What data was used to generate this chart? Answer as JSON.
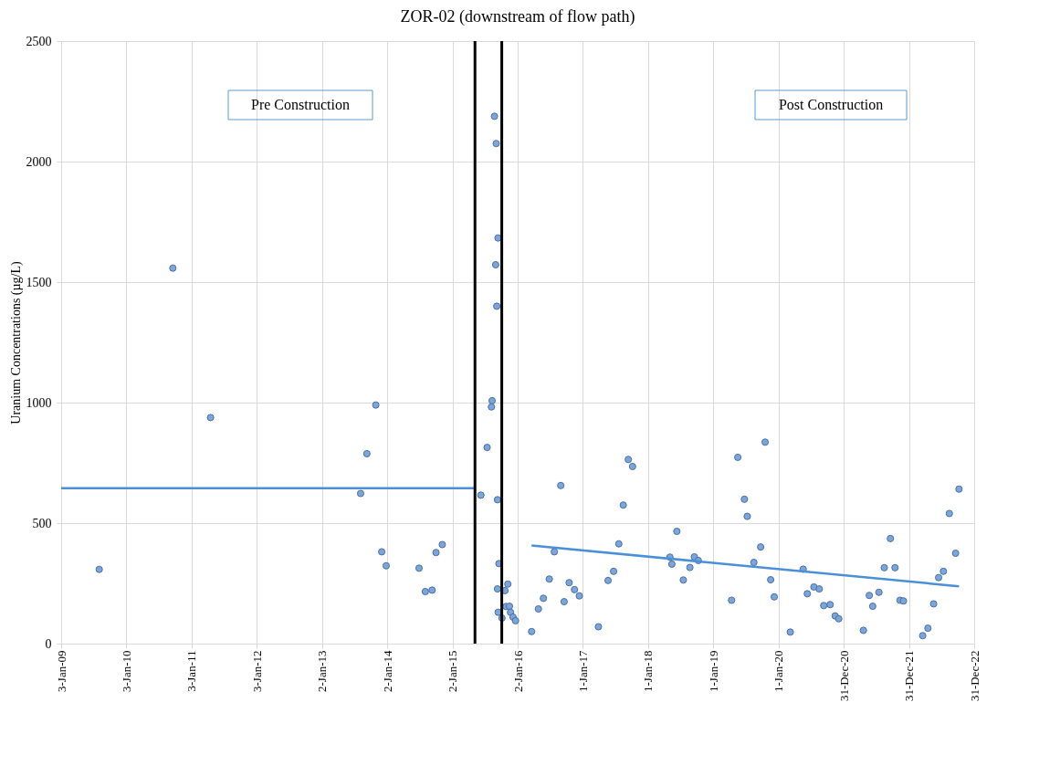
{
  "chart_data": {
    "type": "scatter",
    "title": "ZOR-02 (downstream of flow path)",
    "ylabel": "Uranium Concentrations (µg/L)",
    "xlim": [
      "2009-01-03",
      "2022-12-31"
    ],
    "ylim": [
      0,
      2500
    ],
    "yticks": [
      0,
      500,
      1000,
      1500,
      2000,
      2500
    ],
    "xticks": [
      {
        "value": "2009-01-03",
        "label": "3-Jan-09"
      },
      {
        "value": "2010-01-03",
        "label": "3-Jan-10"
      },
      {
        "value": "2011-01-03",
        "label": "3-Jan-11"
      },
      {
        "value": "2012-01-03",
        "label": "3-Jan-12"
      },
      {
        "value": "2013-01-02",
        "label": "2-Jan-13"
      },
      {
        "value": "2014-01-02",
        "label": "2-Jan-14"
      },
      {
        "value": "2015-01-02",
        "label": "2-Jan-15"
      },
      {
        "value": "2016-01-02",
        "label": "2-Jan-16"
      },
      {
        "value": "2017-01-01",
        "label": "1-Jan-17"
      },
      {
        "value": "2018-01-01",
        "label": "1-Jan-18"
      },
      {
        "value": "2019-01-01",
        "label": "1-Jan-19"
      },
      {
        "value": "2020-01-01",
        "label": "1-Jan-20"
      },
      {
        "value": "2020-12-31",
        "label": "31-Dec-20"
      },
      {
        "value": "2021-12-31",
        "label": "31-Dec-21"
      },
      {
        "value": "2022-12-31",
        "label": "31-Dec-22"
      }
    ],
    "grid": true,
    "marker": "circle",
    "series": [
      {
        "color": "#7aa6dc",
        "x": [
          "2009-08-04",
          "2010-09-20",
          "2011-04-19",
          "2013-08-06",
          "2013-09-10",
          "2013-10-30",
          "2013-12-02",
          "2013-12-27",
          "2014-06-29",
          "2014-08-03",
          "2014-09-10",
          "2014-10-02",
          "2014-11-06",
          "2015-06-10",
          "2015-07-15",
          "2015-08-08",
          "2015-08-12",
          "2015-08-25",
          "2015-09-01",
          "2015-09-04",
          "2015-09-07",
          "2015-09-11",
          "2015-09-14",
          "2015-09-19",
          "2015-09-11",
          "2015-09-15",
          "2015-10-06",
          "2015-10-23",
          "2015-10-29",
          "2015-11-08",
          "2015-11-17",
          "2015-11-23",
          "2015-12-07",
          "2015-12-21",
          "2016-03-20",
          "2016-04-27",
          "2016-05-25",
          "2016-06-27",
          "2016-07-25",
          "2016-08-30",
          "2016-09-18",
          "2016-10-16",
          "2016-11-15",
          "2016-12-12",
          "2017-03-29",
          "2017-05-22",
          "2017-06-22",
          "2017-07-21",
          "2017-08-15",
          "2017-09-12",
          "2017-10-06",
          "2018-05-03",
          "2018-05-14",
          "2018-06-11",
          "2018-07-17",
          "2018-08-23",
          "2018-09-17",
          "2018-10-09",
          "2019-04-13",
          "2019-05-18",
          "2019-06-24",
          "2019-07-10",
          "2019-08-16",
          "2019-09-23",
          "2019-10-18",
          "2019-11-18",
          "2019-12-08",
          "2020-03-07",
          "2020-05-18",
          "2020-06-10",
          "2020-07-17",
          "2020-08-16",
          "2020-09-10",
          "2020-10-16",
          "2020-11-13",
          "2020-12-03",
          "2021-04-20",
          "2021-05-23",
          "2021-06-11",
          "2021-07-16",
          "2021-08-15",
          "2021-09-18",
          "2021-10-14",
          "2021-11-11",
          "2021-11-30",
          "2022-03-18",
          "2022-04-16",
          "2022-05-18",
          "2022-06-15",
          "2022-07-12",
          "2022-08-14",
          "2022-09-18",
          "2022-10-07"
        ],
        "values": [
          308,
          1558,
          938,
          623,
          788,
          990,
          381,
          323,
          313,
          216,
          222,
          378,
          411,
          616,
          814,
          982,
          1008,
          2188,
          1572,
          2075,
          1400,
          597,
          1683,
          332,
          227,
          130,
          106,
          220,
          154,
          247,
          155,
          130,
          110,
          95,
          50,
          144,
          188,
          268,
          381,
          656,
          174,
          253,
          224,
          198,
          70,
          262,
          300,
          414,
          575,
          764,
          735,
          359,
          330,
          466,
          264,
          316,
          360,
          345,
          180,
          773,
          599,
          528,
          337,
          401,
          836,
          265,
          194,
          48,
          309,
          207,
          235,
          227,
          158,
          162,
          115,
          103,
          55,
          200,
          155,
          213,
          315,
          436,
          315,
          180,
          177,
          33,
          64,
          165,
          274,
          300,
          540,
          375,
          641
        ]
      },
      {
        "type": "line",
        "marker": "none",
        "color": "#4a90d9",
        "x": [
          "2009-01-03",
          "2015-05-08"
        ],
        "values": [
          645,
          645
        ]
      },
      {
        "type": "line",
        "marker": "none",
        "color": "#4a90d9",
        "x": [
          "2016-03-20",
          "2022-10-07"
        ],
        "values": [
          407,
          238
        ]
      }
    ],
    "ref_lines": [
      {
        "axis": "x",
        "value": "2015-05-08",
        "color": "#000000"
      },
      {
        "axis": "x",
        "value": "2015-10-05",
        "color": "#000000"
      }
    ],
    "annotations": [
      "Pre Construction",
      "Post Construction"
    ]
  }
}
